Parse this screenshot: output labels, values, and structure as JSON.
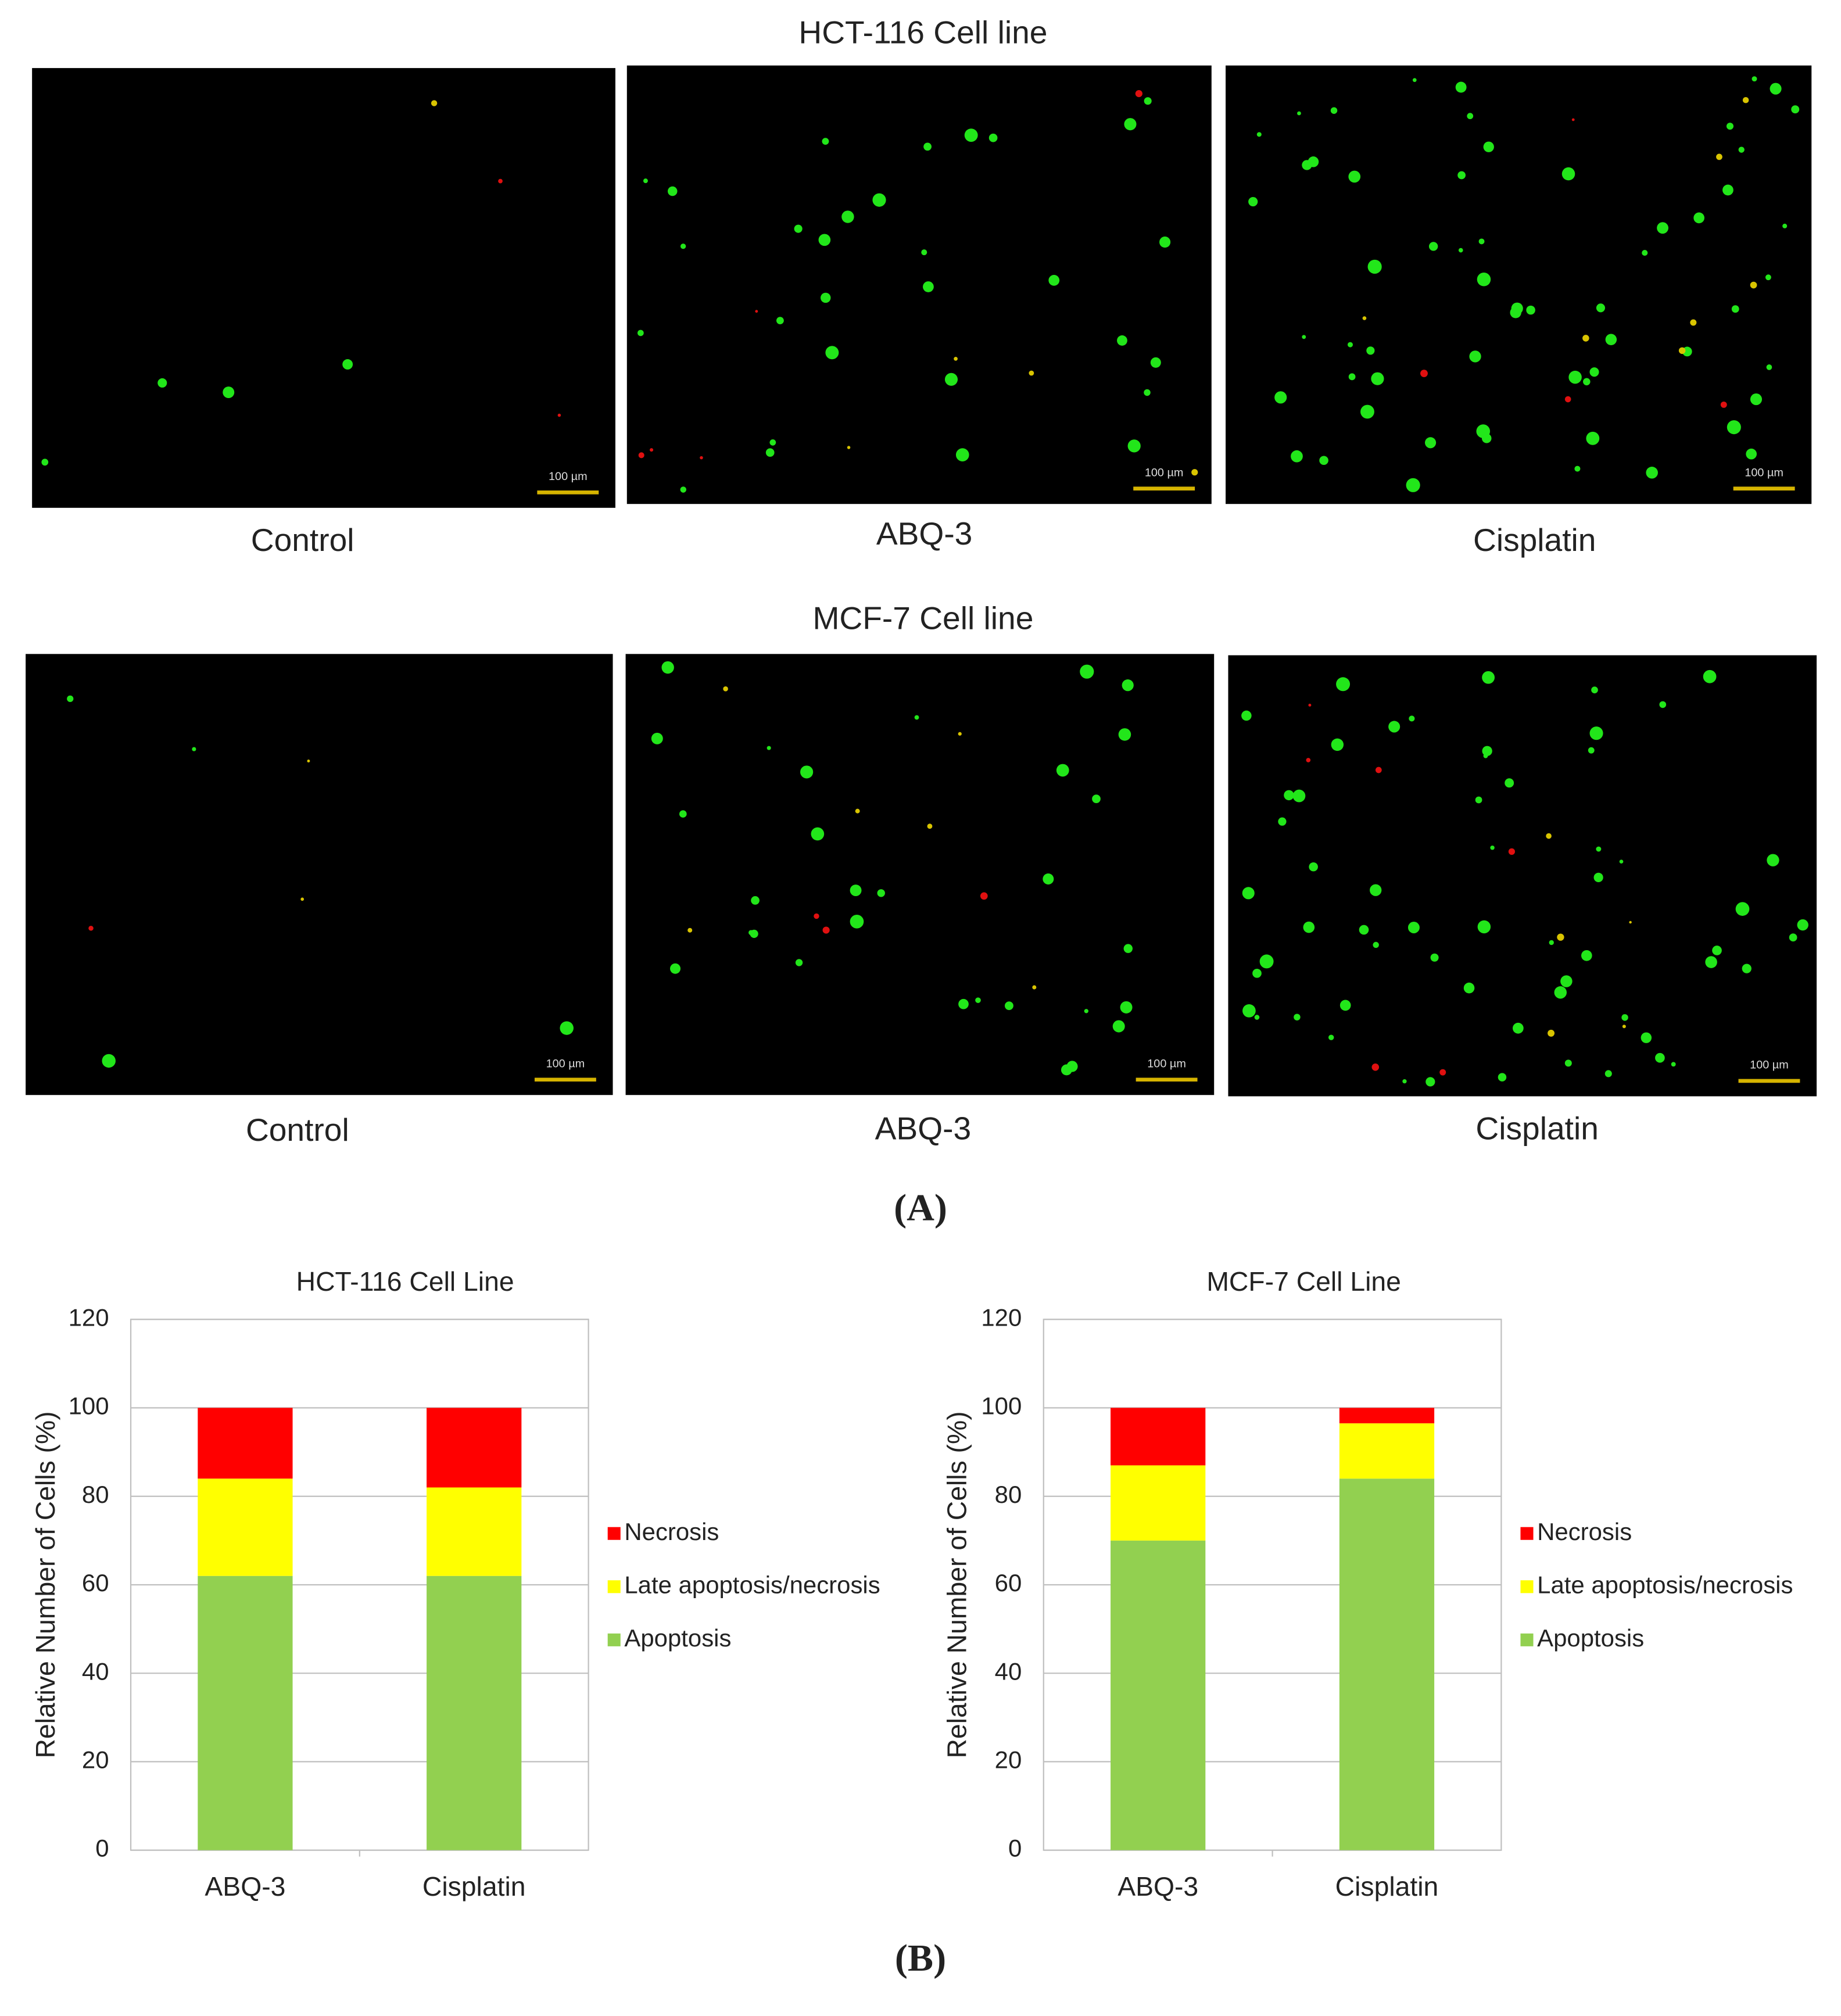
{
  "figure": {
    "panel_a": "(A)",
    "panel_b": "(B)",
    "scale_bar": "100 µm",
    "rows": [
      {
        "title": "HCT-116 Cell line",
        "labels": [
          "Control",
          "ABQ-3",
          "Cisplatin"
        ]
      },
      {
        "title": "MCF-7 Cell line",
        "labels": [
          "Control",
          "ABQ-3",
          "Cisplatin"
        ]
      }
    ]
  },
  "chart_data": [
    {
      "type": "bar",
      "stacked": true,
      "title": "HCT-116 Cell Line",
      "y_label": "Relative Number of Cells (%)",
      "categories": [
        "ABQ-3",
        "Cisplatin"
      ],
      "series": [
        {
          "name": "Apoptosis",
          "color": "#92d050",
          "values": [
            62,
            62
          ]
        },
        {
          "name": "Late apoptosis/necrosis",
          "color": "#ffff00",
          "values": [
            22,
            20
          ]
        },
        {
          "name": "Necrosis",
          "color": "#ff0000",
          "values": [
            16,
            18
          ]
        }
      ],
      "ylim": [
        0,
        120
      ],
      "yticks": [
        0,
        20,
        40,
        60,
        80,
        100,
        120
      ],
      "grid": true,
      "legend": "right"
    },
    {
      "type": "bar",
      "stacked": true,
      "title": "MCF-7 Cell Line",
      "y_label": "Relative Number of Cells (%)",
      "categories": [
        "ABQ-3",
        "Cisplatin"
      ],
      "series": [
        {
          "name": "Apoptosis",
          "color": "#92d050",
          "values": [
            70,
            84
          ]
        },
        {
          "name": "Late apoptosis/necrosis",
          "color": "#ffff00",
          "values": [
            17,
            12.5
          ]
        },
        {
          "name": "Necrosis",
          "color": "#ff0000",
          "values": [
            13,
            3.5
          ]
        }
      ],
      "ylim": [
        0,
        120
      ],
      "yticks": [
        0,
        20,
        40,
        60,
        80,
        100,
        120
      ],
      "grid": true,
      "legend": "right"
    }
  ]
}
